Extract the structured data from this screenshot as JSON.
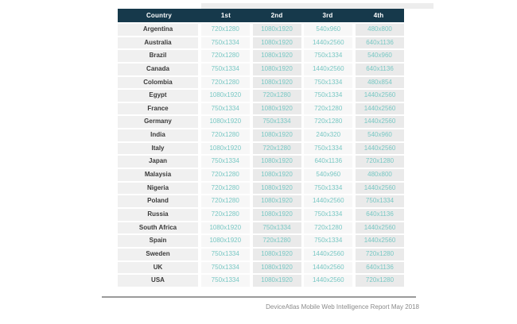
{
  "chart_data": {
    "type": "table",
    "title": "",
    "columns": [
      "Country",
      "1st",
      "2nd",
      "3rd",
      "4th"
    ],
    "rows": [
      [
        "Argentina",
        "720x1280",
        "1080x1920",
        "540x960",
        "480x800"
      ],
      [
        "Australia",
        "750x1334",
        "1080x1920",
        "1440x2560",
        "640x1136"
      ],
      [
        "Brazil",
        "720x1280",
        "1080x1920",
        "750x1334",
        "540x960"
      ],
      [
        "Canada",
        "750x1334",
        "1080x1920",
        "1440x2560",
        "640x1136"
      ],
      [
        "Colombia",
        "720x1280",
        "1080x1920",
        "750x1334",
        "480x854"
      ],
      [
        "Egypt",
        "1080x1920",
        "720x1280",
        "750x1334",
        "1440x2560"
      ],
      [
        "France",
        "750x1334",
        "1080x1920",
        "720x1280",
        "1440x2560"
      ],
      [
        "Germany",
        "1080x1920",
        "750x1334",
        "720x1280",
        "1440x2560"
      ],
      [
        "India",
        "720x1280",
        "1080x1920",
        "240x320",
        "540x960"
      ],
      [
        "Italy",
        "1080x1920",
        "720x1280",
        "750x1334",
        "1440x2560"
      ],
      [
        "Japan",
        "750x1334",
        "1080x1920",
        "640x1136",
        "720x1280"
      ],
      [
        "Malaysia",
        "720x1280",
        "1080x1920",
        "540x960",
        "480x800"
      ],
      [
        "Nigeria",
        "720x1280",
        "1080x1920",
        "750x1334",
        "1440x2560"
      ],
      [
        "Poland",
        "720x1280",
        "1080x1920",
        "1440x2560",
        "750x1334"
      ],
      [
        "Russia",
        "720x1280",
        "1080x1920",
        "750x1334",
        "640x1136"
      ],
      [
        "South Africa",
        "1080x1920",
        "750x1334",
        "720x1280",
        "1440x2560"
      ],
      [
        "Spain",
        "1080x1920",
        "720x1280",
        "750x1334",
        "1440x2560"
      ],
      [
        "Sweden",
        "750x1334",
        "1080x1920",
        "1440x2560",
        "720x1280"
      ],
      [
        "UK",
        "750x1334",
        "1080x1920",
        "1440x2560",
        "640x1136"
      ],
      [
        "USA",
        "750x1334",
        "1080x1920",
        "1440x2560",
        "720x1280"
      ]
    ],
    "legend_position": "none",
    "grid": false
  },
  "footer": {
    "caption": "DeviceAtlas Mobile Web Intelligence Report May 2018"
  },
  "colors": {
    "header_bg": "#16394b",
    "header_text": "#ffffff",
    "country_cell_bg": "#f0f0f0",
    "column_light_bg": "#f7f7f7",
    "column_dark_bg": "#eaeaea",
    "resolution_text": "#79c8c4",
    "country_text": "#3a3a3a",
    "divider": "#9b9b9b",
    "caption_text": "#8a8a8a"
  }
}
